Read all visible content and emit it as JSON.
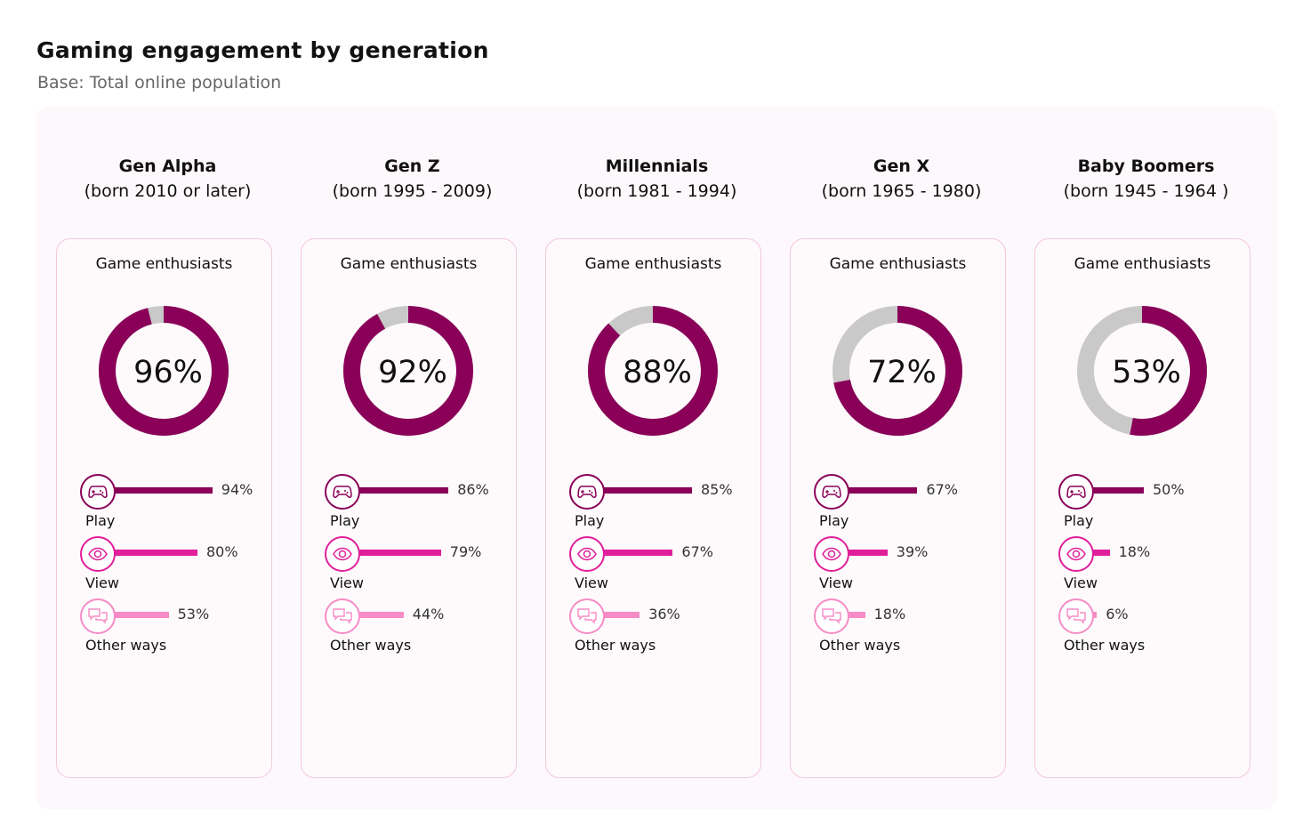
{
  "title": "Gaming engagement by generation",
  "subtitle": "Base: Total online population",
  "colors": {
    "play": "#8a0058",
    "view": "#e01f9a",
    "other": "#f78bc6",
    "rest": "#c9c9c9",
    "enthusiast": "#8a0058"
  },
  "chart_data": {
    "type": "donut+bar",
    "card_title": "Game enthusiasts",
    "bar_labels": [
      "Play",
      "View",
      "Other ways"
    ],
    "bar_icons": [
      "gamepad-icon",
      "eye-icon",
      "chat-bubbles-icon"
    ],
    "generations": [
      {
        "name": "Gen Alpha",
        "born": "(born 2010 or later)",
        "enthusiasts": 96,
        "enthusiasts_label": "96%",
        "play": 94,
        "play_label": "94%",
        "view": 80,
        "view_label": "80%",
        "other": 53,
        "other_label": "53%"
      },
      {
        "name": "Gen Z",
        "born": "(born 1995 - 2009)",
        "enthusiasts": 92,
        "enthusiasts_label": "92%",
        "play": 86,
        "play_label": "86%",
        "view": 79,
        "view_label": "79%",
        "other": 44,
        "other_label": "44%"
      },
      {
        "name": "Millennials",
        "born": "(born 1981 - 1994)",
        "enthusiasts": 88,
        "enthusiasts_label": "88%",
        "play": 85,
        "play_label": "85%",
        "view": 67,
        "view_label": "67%",
        "other": 36,
        "other_label": "36%"
      },
      {
        "name": "Gen X",
        "born": "(born 1965 - 1980)",
        "enthusiasts": 72,
        "enthusiasts_label": "72%",
        "play": 67,
        "play_label": "67%",
        "view": 39,
        "view_label": "39%",
        "other": 18,
        "other_label": "18%"
      },
      {
        "name": "Baby Boomers",
        "born": "(born 1945 - 1964 )",
        "enthusiasts": 53,
        "enthusiasts_label": "53%",
        "play": 50,
        "play_label": "50%",
        "view": 18,
        "view_label": "18%",
        "other": 6,
        "other_label": "6%"
      }
    ]
  }
}
